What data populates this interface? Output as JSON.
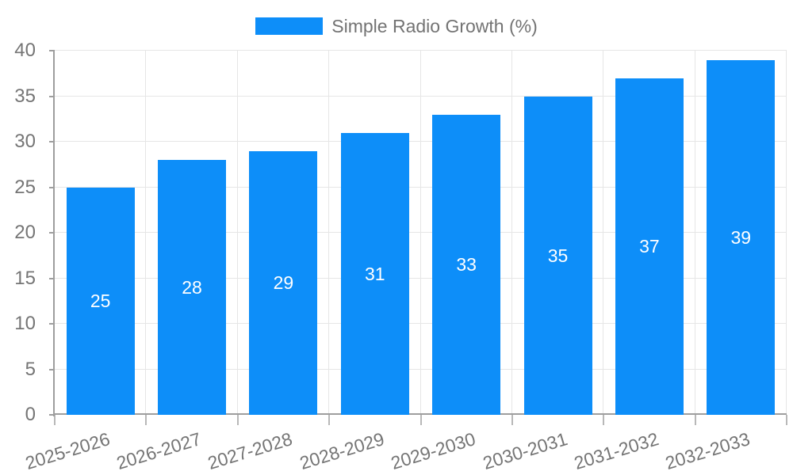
{
  "chart_data": {
    "type": "bar",
    "title": "Simple Radio Growth (%)",
    "categories": [
      "2025-2026",
      "2026-2027",
      "2027-2028",
      "2028-2029",
      "2029-2030",
      "2030-2031",
      "2031-2032",
      "2032-2033"
    ],
    "values": [
      25,
      28,
      29,
      31,
      33,
      35,
      37,
      39
    ],
    "bar_labels": [
      "25",
      "28",
      "29",
      "31",
      "33",
      "35",
      "37",
      "39"
    ],
    "xlabel": "",
    "ylabel": "",
    "ylim": [
      0,
      40
    ],
    "yticks": [
      0,
      5,
      10,
      15,
      20,
      25,
      30,
      35,
      40
    ],
    "grid": true,
    "legend_position": "top-center",
    "colors": {
      "bar": "#0d8ef9",
      "value_label": "#ffffff",
      "grid": "#e6e6e6",
      "axis": "#9e9e9e",
      "tick_text": "#757575",
      "legend_text": "#737373"
    }
  }
}
